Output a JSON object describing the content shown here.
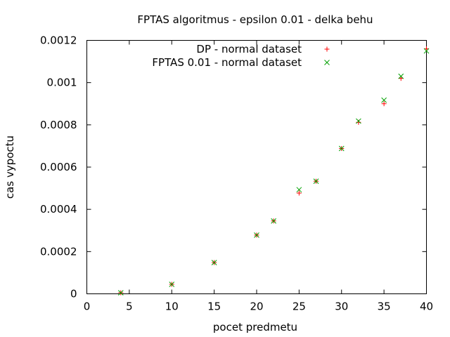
{
  "chart_data": {
    "type": "scatter",
    "title": "FPTAS algoritmus - epsilon 0.01 - delka behu",
    "xlabel": "pocet predmetu",
    "ylabel": "cas vypoctu",
    "xlim": [
      0,
      40
    ],
    "ylim": [
      0,
      0.0012
    ],
    "xticks": [
      "0",
      "5",
      "10",
      "15",
      "20",
      "25",
      "30",
      "35",
      "40"
    ],
    "yticks": [
      "0",
      "0.0002",
      "0.0004",
      "0.0006",
      "0.0008",
      "0.001",
      "0.0012"
    ],
    "grid": false,
    "legend_position": "top-right",
    "series": [
      {
        "name": "DP - normal dataset",
        "marker": "plus",
        "color": "#ff0000",
        "x": [
          4,
          10,
          15,
          20,
          22,
          25,
          27,
          30,
          32,
          35,
          37,
          40
        ],
        "y": [
          5e-06,
          4.5e-05,
          0.000148,
          0.000278,
          0.000345,
          0.000477,
          0.000533,
          0.000688,
          0.000812,
          0.0009,
          0.00102,
          0.00116
        ]
      },
      {
        "name": "FPTAS 0.01 - normal dataset",
        "marker": "cross",
        "color": "#00a000",
        "x": [
          4,
          10,
          15,
          20,
          22,
          25,
          27,
          30,
          32,
          35,
          37,
          40
        ],
        "y": [
          5e-06,
          4.5e-05,
          0.000148,
          0.000278,
          0.000345,
          0.000493,
          0.000533,
          0.000688,
          0.000818,
          0.000917,
          0.00103,
          0.00115
        ]
      }
    ]
  }
}
